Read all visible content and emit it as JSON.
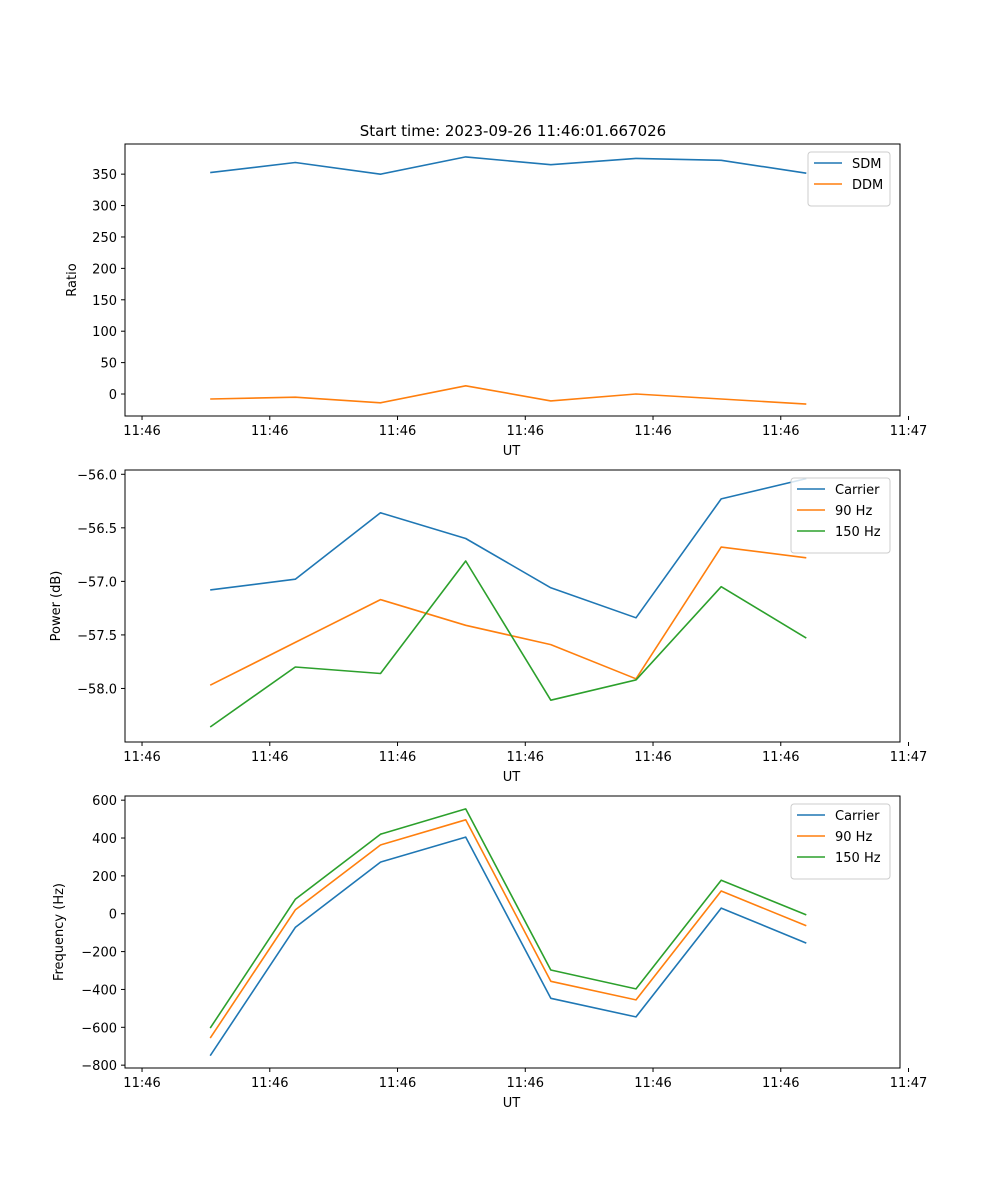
{
  "figure_title": "Start time: 2023-09-26 11:46:01.667026",
  "colors": {
    "blue": "#1f77b4",
    "orange": "#ff7f0e",
    "green": "#2ca02c"
  },
  "chart_data": [
    {
      "type": "line",
      "title": "Start time: 2023-09-26 11:46:01.667026",
      "xlabel": "UT",
      "ylabel": "Ratio",
      "x": [
        1,
        2,
        3,
        4,
        5,
        6,
        7,
        8
      ],
      "xlim": [
        0,
        9.1
      ],
      "xticks": [
        0.2,
        1.7,
        3.2,
        4.7,
        6.2,
        7.7,
        9.2
      ],
      "xtick_labels": [
        "11:46",
        "11:46",
        "11:46",
        "11:46",
        "11:46",
        "11:46",
        "11:47"
      ],
      "ylim": [
        -35,
        398
      ],
      "yticks": [
        0,
        50,
        100,
        150,
        200,
        250,
        300,
        350
      ],
      "ytick_labels": [
        "0",
        "50",
        "100",
        "150",
        "200",
        "250",
        "300",
        "350"
      ],
      "legend_loc": "upper right",
      "series": [
        {
          "name": "SDM",
          "color": "#1f77b4",
          "values": [
            352.5,
            368.5,
            350,
            377.5,
            365,
            375,
            372,
            351.5
          ]
        },
        {
          "name": "DDM",
          "color": "#ff7f0e",
          "values": [
            -8,
            -5,
            -14,
            13,
            -11,
            0,
            -8,
            -16
          ]
        }
      ]
    },
    {
      "type": "line",
      "title": "",
      "xlabel": "UT",
      "ylabel": "Power (dB)",
      "x": [
        1,
        2,
        3,
        4,
        5,
        6,
        7,
        8
      ],
      "xlim": [
        0,
        9.1
      ],
      "xticks": [
        0.2,
        1.7,
        3.2,
        4.7,
        6.2,
        7.7,
        9.2
      ],
      "xtick_labels": [
        "11:46",
        "11:46",
        "11:46",
        "11:46",
        "11:46",
        "11:46",
        "11:47"
      ],
      "ylim": [
        -58.5,
        -55.96
      ],
      "yticks": [
        -58.0,
        -57.5,
        -57.0,
        -56.5,
        -56.0
      ],
      "ytick_labels": [
        "−58.0",
        "−57.5",
        "−57.0",
        "−56.5",
        "−56.0"
      ],
      "legend_loc": "upper right",
      "series": [
        {
          "name": "Carrier",
          "color": "#1f77b4",
          "values": [
            -57.08,
            -56.98,
            -56.36,
            -56.6,
            -57.06,
            -57.34,
            -56.23,
            -56.04
          ]
        },
        {
          "name": "90 Hz",
          "color": "#ff7f0e",
          "values": [
            -57.97,
            -57.57,
            -57.17,
            -57.41,
            -57.59,
            -57.91,
            -56.68,
            -56.78
          ]
        },
        {
          "name": "150 Hz",
          "color": "#2ca02c",
          "values": [
            -58.36,
            -57.8,
            -57.86,
            -56.81,
            -58.11,
            -57.92,
            -57.05,
            -57.53
          ]
        }
      ]
    },
    {
      "type": "line",
      "title": "",
      "xlabel": "UT",
      "ylabel": "Frequency (Hz)",
      "x": [
        1,
        2,
        3,
        4,
        5,
        6,
        7,
        8
      ],
      "xlim": [
        0,
        9.1
      ],
      "xticks": [
        0.2,
        1.7,
        3.2,
        4.7,
        6.2,
        7.7,
        9.2
      ],
      "xtick_labels": [
        "11:46",
        "11:46",
        "11:46",
        "11:46",
        "11:46",
        "11:46",
        "11:47"
      ],
      "ylim": [
        -815,
        622
      ],
      "yticks": [
        -800,
        -600,
        -400,
        -200,
        0,
        200,
        400,
        600
      ],
      "ytick_labels": [
        "−800",
        "−600",
        "−400",
        "−200",
        "0",
        "200",
        "400",
        "600"
      ],
      "legend_loc": "upper right",
      "series": [
        {
          "name": "Carrier",
          "color": "#1f77b4",
          "values": [
            -750,
            -72,
            273,
            405,
            -447,
            -545,
            30,
            -155
          ]
        },
        {
          "name": "90 Hz",
          "color": "#ff7f0e",
          "values": [
            -657,
            20,
            363,
            496,
            -357,
            -455,
            120,
            -64
          ]
        },
        {
          "name": "150 Hz",
          "color": "#2ca02c",
          "values": [
            -604,
            76,
            420,
            554,
            -297,
            -397,
            177,
            -6
          ]
        }
      ]
    }
  ]
}
